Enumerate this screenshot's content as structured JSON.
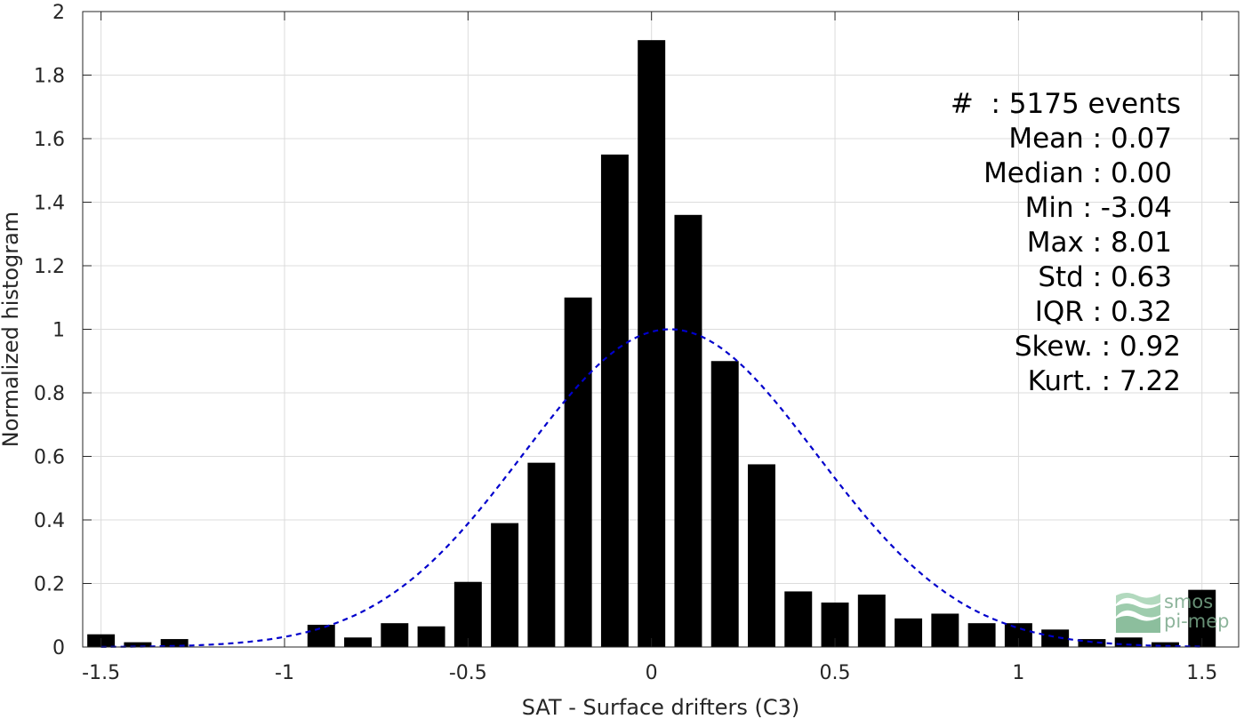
{
  "chart_data": {
    "type": "bar",
    "xlabel": "SAT - Surface drifters (C3)",
    "ylabel": "Normalized histogram",
    "xlim": [
      -1.55,
      1.6
    ],
    "ylim": [
      0,
      2
    ],
    "grid": true,
    "xticks": [
      -1.5,
      -1,
      -0.5,
      0,
      0.5,
      1,
      1.5
    ],
    "xtick_labels": [
      "-1.5",
      "-1",
      "-0.5",
      "0",
      "0.5",
      "1",
      "1.5"
    ],
    "yticks": [
      0,
      0.2,
      0.4,
      0.6,
      0.8,
      1,
      1.2,
      1.4,
      1.6,
      1.8,
      2
    ],
    "ytick_labels": [
      "0",
      "0.2",
      "0.4",
      "0.6",
      "0.8",
      "1",
      "1.2",
      "1.4",
      "1.6",
      "1.8",
      "2"
    ],
    "bar_width": 0.075,
    "bars": {
      "x": [
        -1.5,
        -1.4,
        -1.3,
        -1.2,
        -1.1,
        -1.0,
        -0.9,
        -0.8,
        -0.7,
        -0.6,
        -0.5,
        -0.4,
        -0.3,
        -0.2,
        -0.1,
        0.0,
        0.1,
        0.2,
        0.3,
        0.4,
        0.5,
        0.6,
        0.7,
        0.8,
        0.9,
        1.0,
        1.1,
        1.2,
        1.3,
        1.4,
        1.5
      ],
      "values": [
        0.04,
        0.015,
        0.025,
        0,
        0,
        0,
        0.07,
        0.03,
        0.075,
        0.065,
        0.205,
        0.39,
        0.58,
        1.1,
        1.55,
        1.91,
        1.36,
        0.9,
        0.575,
        0.175,
        0.14,
        0.165,
        0.09,
        0.105,
        0.075,
        0.075,
        0.055,
        0.025,
        0.03,
        0.015,
        0.18
      ],
      "color": "#000000"
    },
    "fit_curve": {
      "type": "gaussian",
      "mean": 0.05,
      "std": 0.4,
      "peak": 1.0,
      "color": "#0000cc",
      "style": "dashed"
    }
  },
  "stats": [
    "#  : 5175 events",
    "Mean : 0.07",
    "Median : 0.00",
    "Min : -3.04",
    "Max : 8.01",
    "Std : 0.63",
    "IQR : 0.32",
    "Skew. : 0.92",
    "Kurt. : 7.22"
  ],
  "watermark": {
    "line1": "smos",
    "line2": "pi-mep",
    "color": "#7aa88a"
  }
}
